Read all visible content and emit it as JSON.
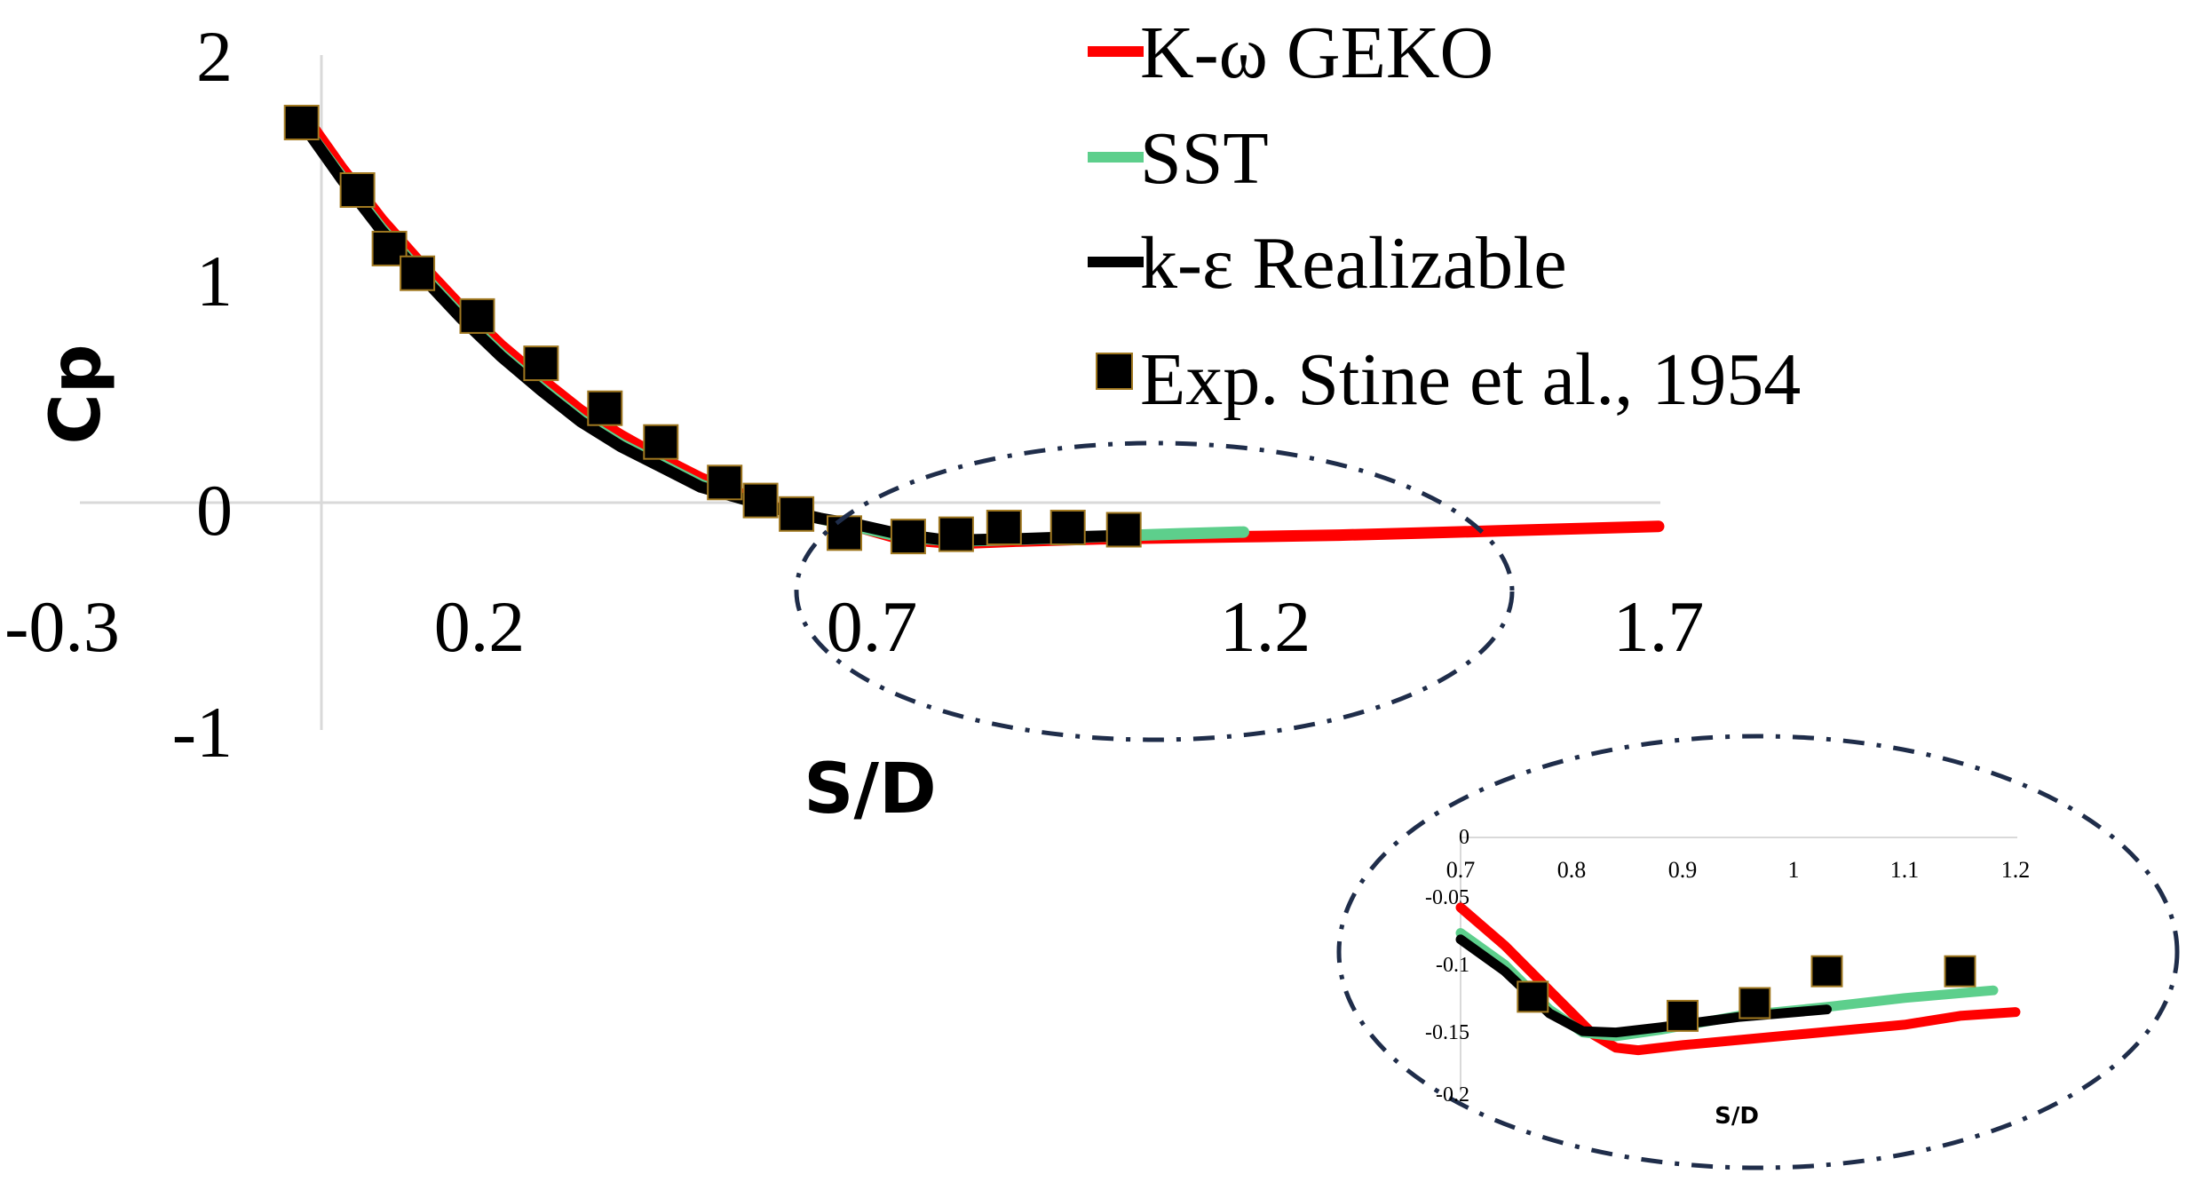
{
  "chart_data": [
    {
      "type": "line",
      "xlabel": "S/D",
      "ylabel": "Cp",
      "xlim": [
        -0.3,
        1.7
      ],
      "ylim": [
        -1,
        2
      ],
      "xticks": [
        -0.3,
        0.2,
        0.7,
        1.2,
        1.7
      ],
      "xtick_labels": [
        "-0.3",
        "0.2",
        "0.7",
        "1.2",
        "1.7"
      ],
      "yticks": [
        -1,
        0,
        1,
        2
      ],
      "ytick_labels": [
        "-1",
        "0",
        "1",
        "2"
      ],
      "grid": false,
      "legend_position": "top-right",
      "series": [
        {
          "name": "K-ω GEKO",
          "color": "#ff0000",
          "kind": "line",
          "x": [
            0.0,
            0.05,
            0.1,
            0.15,
            0.2,
            0.25,
            0.3,
            0.35,
            0.4,
            0.45,
            0.5,
            0.55,
            0.6,
            0.65,
            0.7,
            0.75,
            0.8,
            0.84,
            0.9,
            1.0,
            1.1,
            1.2,
            1.3,
            1.4,
            1.5,
            1.6,
            1.7
          ],
          "y": [
            1.75,
            1.5,
            1.27,
            1.07,
            0.88,
            0.71,
            0.56,
            0.42,
            0.31,
            0.21,
            0.12,
            0.05,
            -0.02,
            -0.06,
            -0.1,
            -0.15,
            -0.165,
            -0.168,
            -0.16,
            -0.15,
            -0.145,
            -0.14,
            -0.134,
            -0.125,
            -0.115,
            -0.105,
            -0.095
          ]
        },
        {
          "name": "SST",
          "color": "#5dcf8c",
          "kind": "line",
          "x": [
            0.0,
            0.05,
            0.1,
            0.15,
            0.2,
            0.25,
            0.3,
            0.35,
            0.4,
            0.45,
            0.5,
            0.55,
            0.6,
            0.65,
            0.7,
            0.75,
            0.8,
            0.84,
            0.9,
            1.0,
            1.1,
            1.18
          ],
          "y": [
            1.7,
            1.46,
            1.23,
            1.03,
            0.84,
            0.67,
            0.52,
            0.38,
            0.27,
            0.18,
            0.09,
            0.03,
            -0.02,
            -0.06,
            -0.1,
            -0.14,
            -0.155,
            -0.158,
            -0.152,
            -0.14,
            -0.128,
            -0.12
          ]
        },
        {
          "name": "k-ε Realizable",
          "color": "#000000",
          "kind": "line",
          "x": [
            0.0,
            0.05,
            0.1,
            0.15,
            0.2,
            0.25,
            0.3,
            0.35,
            0.4,
            0.45,
            0.5,
            0.55,
            0.6,
            0.65,
            0.7,
            0.75,
            0.8,
            0.84,
            0.9,
            0.97,
            1.03
          ],
          "y": [
            1.7,
            1.45,
            1.22,
            1.02,
            0.83,
            0.66,
            0.51,
            0.37,
            0.26,
            0.17,
            0.08,
            0.03,
            -0.02,
            -0.06,
            -0.09,
            -0.13,
            -0.153,
            -0.155,
            -0.15,
            -0.142,
            -0.136
          ]
        },
        {
          "name": "Exp. Stine  et al., 1954",
          "color": "#000000",
          "kind": "marker",
          "x": [
            0.0,
            0.07,
            0.11,
            0.145,
            0.22,
            0.3,
            0.38,
            0.45,
            0.53,
            0.575,
            0.62,
            0.68,
            0.76,
            0.82,
            0.88,
            0.96,
            1.03
          ],
          "y": [
            1.7,
            1.4,
            1.14,
            1.03,
            0.84,
            0.63,
            0.43,
            0.28,
            0.1,
            0.02,
            -0.04,
            -0.125,
            -0.14,
            -0.13,
            -0.1,
            -0.1,
            -0.11
          ]
        }
      ]
    },
    {
      "type": "line",
      "xlabel": "S/D",
      "xlim": [
        0.7,
        1.2
      ],
      "ylim": [
        -0.2,
        0
      ],
      "xticks": [
        0.7,
        0.8,
        0.9,
        1.0,
        1.1,
        1.2
      ],
      "xtick_labels": [
        "0.7",
        "0.8",
        "0.9",
        "1",
        "1.1",
        "1.2"
      ],
      "yticks": [
        0,
        -0.05,
        -0.1,
        -0.15,
        -0.2
      ],
      "ytick_labels": [
        "0",
        "-0.05",
        "-0.1",
        "-0.15",
        "-0.2"
      ],
      "grid": false,
      "series": [
        {
          "color": "#ff0000",
          "kind": "line",
          "x": [
            0.7,
            0.74,
            0.78,
            0.82,
            0.84,
            0.86,
            0.9,
            1.0,
            1.1,
            1.15,
            1.2
          ],
          "y": [
            -0.055,
            -0.085,
            -0.12,
            -0.155,
            -0.165,
            -0.167,
            -0.163,
            -0.155,
            -0.147,
            -0.14,
            -0.137
          ]
        },
        {
          "color": "#5dcf8c",
          "kind": "line",
          "x": [
            0.7,
            0.74,
            0.78,
            0.81,
            0.84,
            0.88,
            0.95,
            1.03,
            1.1,
            1.18
          ],
          "y": [
            -0.075,
            -0.1,
            -0.135,
            -0.153,
            -0.156,
            -0.151,
            -0.14,
            -0.133,
            -0.126,
            -0.12
          ]
        },
        {
          "color": "#000000",
          "kind": "line",
          "x": [
            0.7,
            0.74,
            0.78,
            0.81,
            0.84,
            0.88,
            0.95,
            1.03
          ],
          "y": [
            -0.08,
            -0.105,
            -0.138,
            -0.152,
            -0.153,
            -0.149,
            -0.141,
            -0.135
          ]
        },
        {
          "color": "#000000",
          "kind": "marker",
          "x": [
            0.765,
            0.9,
            0.965,
            1.03,
            1.15
          ],
          "y": [
            -0.125,
            -0.14,
            -0.13,
            -0.105,
            -0.105
          ]
        }
      ]
    }
  ]
}
